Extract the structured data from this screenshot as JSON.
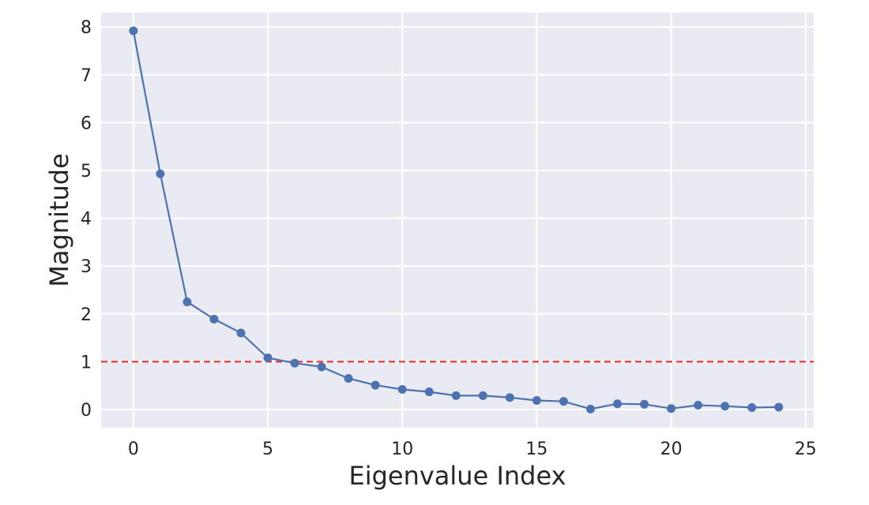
{
  "chart_data": {
    "type": "line",
    "title": "",
    "xlabel": "Eigenvalue Index",
    "ylabel": "Magnitude",
    "xlim": [
      -1.2,
      25.3
    ],
    "ylim": [
      -0.38,
      8.3
    ],
    "xticks": [
      0,
      5,
      10,
      15,
      20,
      25
    ],
    "yticks": [
      0,
      1,
      2,
      3,
      4,
      5,
      6,
      7,
      8
    ],
    "grid": true,
    "background_color": "#eaeaf2",
    "grid_color": "#ffffff",
    "series": [
      {
        "color": "#4c72b0",
        "marker": "circle",
        "x": [
          0,
          1,
          2,
          3,
          4,
          5,
          6,
          7,
          8,
          9,
          10,
          11,
          12,
          13,
          14,
          15,
          16,
          17,
          18,
          19,
          20,
          21,
          22,
          23,
          24
        ],
        "y": [
          7.92,
          4.93,
          2.25,
          1.89,
          1.6,
          1.08,
          0.97,
          0.89,
          0.65,
          0.51,
          0.42,
          0.37,
          0.29,
          0.29,
          0.25,
          0.19,
          0.17,
          0.01,
          0.12,
          0.11,
          0.02,
          0.09,
          0.07,
          0.04,
          0.05
        ]
      }
    ],
    "reference_lines": [
      {
        "orientation": "horizontal",
        "y": 1,
        "color": "#e8262b",
        "style": "dashed"
      }
    ]
  }
}
